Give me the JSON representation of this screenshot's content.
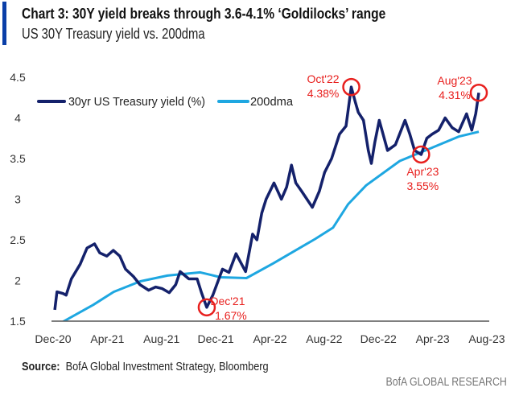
{
  "header": {
    "title": "Chart 3: 30Y yield breaks through 3.6-4.1% ‘Goldilocks’ range",
    "subtitle": "US 30Y Treasury yield vs. 200dma"
  },
  "footer": {
    "source_label": "Source:",
    "source_text": "BofA Global Investment Strategy, Bloomberg",
    "brand": "BofA GLOBAL RESEARCH"
  },
  "chart_data": {
    "type": "line",
    "title": "Chart 3: 30Y yield breaks through 3.6-4.1% ‘Goldilocks’ range",
    "subtitle": "US 30Y Treasury yield vs. 200dma",
    "xlabel": "",
    "ylabel": "",
    "ylim": [
      1.5,
      4.5
    ],
    "yticks": [
      "1.5",
      "2",
      "2.5",
      "3",
      "3.5",
      "4",
      "4.5"
    ],
    "xticks": [
      "Dec-20",
      "Apr-21",
      "Aug-21",
      "Dec-21",
      "Apr-22",
      "Aug-22",
      "Dec-22",
      "Apr-23",
      "Aug-23"
    ],
    "xlim": [
      "2020-12-15",
      "2023-08-15"
    ],
    "grid": false,
    "legend": "top-left",
    "series": [
      {
        "name": "30yr US Treasury yield (%)",
        "color": "#14216b",
        "points": [
          [
            "2020-12-17",
            1.64
          ],
          [
            "2020-12-22",
            1.86
          ],
          [
            "2021-01-05",
            1.84
          ],
          [
            "2021-01-12",
            1.82
          ],
          [
            "2021-01-24",
            2.02
          ],
          [
            "2021-02-13",
            2.2
          ],
          [
            "2021-03-01",
            2.4
          ],
          [
            "2021-03-18",
            2.45
          ],
          [
            "2021-03-30",
            2.34
          ],
          [
            "2021-04-15",
            2.3
          ],
          [
            "2021-04-30",
            2.37
          ],
          [
            "2021-05-15",
            2.3
          ],
          [
            "2021-05-28",
            2.14
          ],
          [
            "2021-06-15",
            2.05
          ],
          [
            "2021-06-30",
            1.95
          ],
          [
            "2021-07-20",
            1.88
          ],
          [
            "2021-08-05",
            1.92
          ],
          [
            "2021-08-20",
            1.9
          ],
          [
            "2021-09-05",
            1.85
          ],
          [
            "2021-09-20",
            1.95
          ],
          [
            "2021-09-30",
            2.11
          ],
          [
            "2021-10-20",
            2.02
          ],
          [
            "2021-11-08",
            2.02
          ],
          [
            "2021-11-18",
            1.85
          ],
          [
            "2021-11-30",
            1.67
          ],
          [
            "2021-12-14",
            1.82
          ],
          [
            "2022-01-05",
            2.14
          ],
          [
            "2022-01-20",
            2.1
          ],
          [
            "2022-02-05",
            2.33
          ],
          [
            "2022-02-27",
            2.11
          ],
          [
            "2022-03-15",
            2.57
          ],
          [
            "2022-03-25",
            2.5
          ],
          [
            "2022-04-05",
            2.83
          ],
          [
            "2022-04-15",
            3.0
          ],
          [
            "2022-05-03",
            3.2
          ],
          [
            "2022-05-20",
            3.0
          ],
          [
            "2022-06-01",
            3.15
          ],
          [
            "2022-06-12",
            3.42
          ],
          [
            "2022-06-22",
            3.2
          ],
          [
            "2022-07-05",
            3.1
          ],
          [
            "2022-07-30",
            2.9
          ],
          [
            "2022-08-15",
            3.1
          ],
          [
            "2022-08-27",
            3.33
          ],
          [
            "2022-09-12",
            3.5
          ],
          [
            "2022-09-30",
            3.8
          ],
          [
            "2022-10-15",
            3.9
          ],
          [
            "2022-10-27",
            4.38
          ],
          [
            "2022-11-05",
            4.2
          ],
          [
            "2022-11-12",
            4.07
          ],
          [
            "2022-11-24",
            3.97
          ],
          [
            "2022-12-05",
            3.6
          ],
          [
            "2022-12-12",
            3.44
          ],
          [
            "2022-12-20",
            3.7
          ],
          [
            "2022-12-30",
            3.97
          ],
          [
            "2023-01-18",
            3.6
          ],
          [
            "2023-02-05",
            3.67
          ],
          [
            "2023-02-27",
            3.97
          ],
          [
            "2023-03-10",
            3.8
          ],
          [
            "2023-03-21",
            3.6
          ],
          [
            "2023-04-05",
            3.55
          ],
          [
            "2023-04-18",
            3.75
          ],
          [
            "2023-04-30",
            3.8
          ],
          [
            "2023-05-15",
            3.85
          ],
          [
            "2023-05-30",
            4.0
          ],
          [
            "2023-06-15",
            3.88
          ],
          [
            "2023-06-30",
            3.83
          ],
          [
            "2023-07-18",
            4.05
          ],
          [
            "2023-07-30",
            3.85
          ],
          [
            "2023-08-08",
            4.05
          ],
          [
            "2023-08-15",
            4.31
          ]
        ]
      },
      {
        "name": "200dma",
        "color": "#1ea7e1",
        "points": [
          [
            "2020-12-17",
            1.42
          ],
          [
            "2021-01-07",
            1.5
          ],
          [
            "2021-03-15",
            1.7
          ],
          [
            "2021-05-01",
            1.86
          ],
          [
            "2021-07-01",
            1.99
          ],
          [
            "2021-09-01",
            2.06
          ],
          [
            "2021-11-15",
            2.1
          ],
          [
            "2022-01-01",
            2.04
          ],
          [
            "2022-03-01",
            2.03
          ],
          [
            "2022-05-01",
            2.21
          ],
          [
            "2022-08-05",
            2.51
          ],
          [
            "2022-09-15",
            2.65
          ],
          [
            "2022-10-20",
            2.94
          ],
          [
            "2022-11-30",
            3.17
          ],
          [
            "2023-02-15",
            3.47
          ],
          [
            "2023-04-15",
            3.6
          ],
          [
            "2023-06-30",
            3.77
          ],
          [
            "2023-08-15",
            3.83
          ]
        ]
      }
    ],
    "annotations": [
      {
        "date": "2021-11-30",
        "value": 1.67,
        "label": "Dec'21",
        "value_label": "1.67%",
        "color": "#e8201e"
      },
      {
        "date": "2022-10-27",
        "value": 4.38,
        "label": "Oct'22",
        "value_label": "4.38%",
        "color": "#e8201e"
      },
      {
        "date": "2023-04-05",
        "value": 3.55,
        "label": "Apr'23",
        "value_label": "3.55%",
        "color": "#e8201e"
      },
      {
        "date": "2023-08-15",
        "value": 4.31,
        "label": "Aug'23",
        "value_label": "4.31%",
        "color": "#e8201e"
      }
    ]
  }
}
